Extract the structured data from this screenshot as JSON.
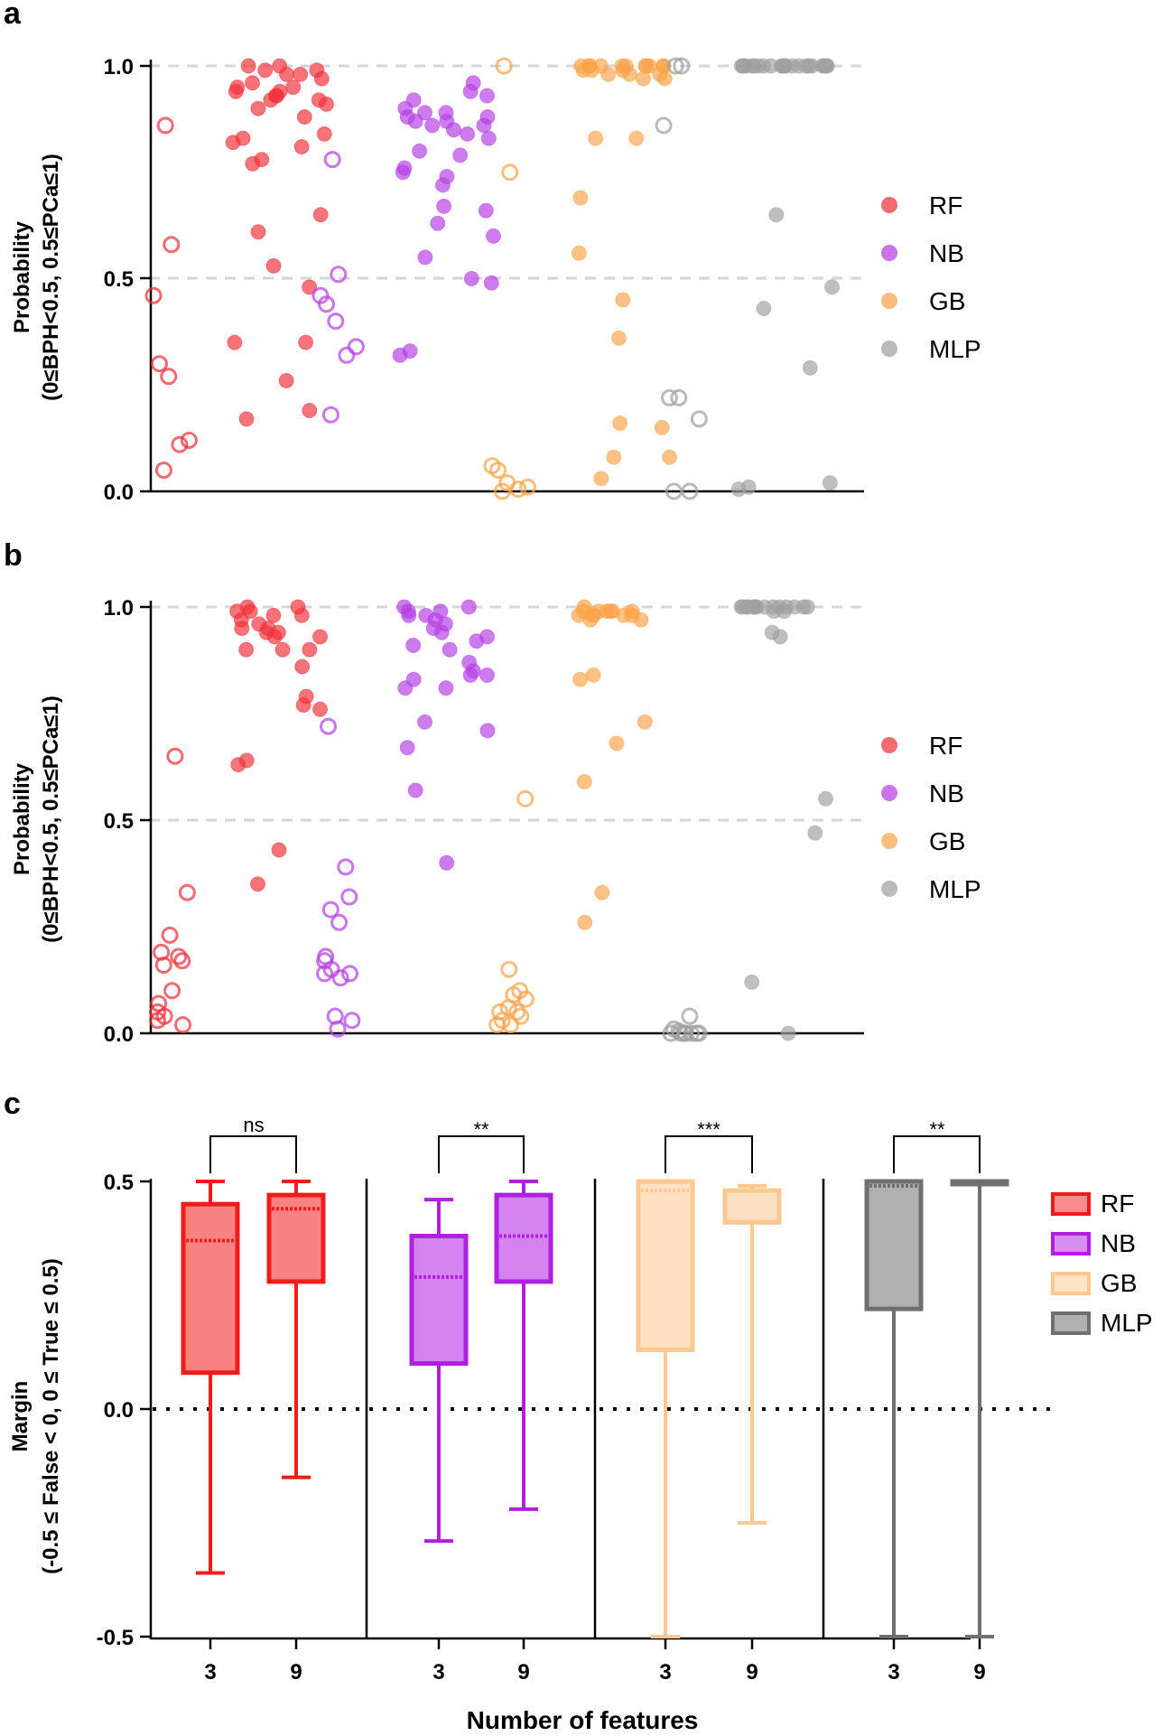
{
  "colors": {
    "RF": "#f0313a",
    "NB": "#b53ee6",
    "GB": "#fba44a",
    "MLP": "#a0a0a0",
    "RF_box": "#f21b1b",
    "NB_box": "#b01fe0",
    "GB_box": "#fbc98f",
    "MLP_box": "#6f6f6f"
  },
  "panels": {
    "a": {
      "letter": "a",
      "ylabel_line1": "Probability",
      "ylabel_line2": "(0≤BPH<0.5, 0.5≤PCa≤1)",
      "yticks": [
        "1.0",
        "0.5",
        "0.0"
      ],
      "legend": [
        "RF",
        "NB",
        "GB",
        "MLP"
      ]
    },
    "b": {
      "letter": "b",
      "ylabel_line1": "Probability",
      "ylabel_line2": "(0≤BPH<0.5, 0.5≤PCa≤1)",
      "yticks": [
        "1.0",
        "0.5",
        "0.0"
      ],
      "legend": [
        "RF",
        "NB",
        "GB",
        "MLP"
      ]
    },
    "c": {
      "letter": "c",
      "ylabel_line1": "Margin",
      "ylabel_line2": "(-0.5 ≤ False < 0, 0 ≤ True  ≤ 0.5)",
      "yticks": [
        "0.5",
        "0.0",
        "-0.5"
      ],
      "legend": [
        "RF",
        "NB",
        "GB",
        "MLP"
      ],
      "xlabel": "Number of features",
      "xticks": [
        "3",
        "9",
        "3",
        "9",
        "3",
        "9",
        "3",
        "9"
      ]
    }
  },
  "chart_data": [
    {
      "type": "scatter",
      "panel": "a",
      "ylabel": "Probability (0≤BPH<0.5, 0.5≤PCa≤1)",
      "ylim": [
        0,
        1
      ],
      "gridlines": [
        0.5,
        1.0
      ],
      "groups": [
        {
          "model": "RF",
          "style": "open",
          "values": [
            0.86,
            0.58,
            0.46,
            0.3,
            0.27,
            0.12,
            0.11,
            0.05
          ]
        },
        {
          "model": "RF",
          "style": "filled",
          "values": [
            1.0,
            1.0,
            0.99,
            0.99,
            0.98,
            0.98,
            0.97,
            0.96,
            0.95,
            0.95,
            0.94,
            0.94,
            0.93,
            0.93,
            0.92,
            0.92,
            0.91,
            0.9,
            0.88,
            0.84,
            0.83,
            0.82,
            0.81,
            0.78,
            0.77,
            0.65,
            0.61,
            0.53,
            0.48,
            0.35,
            0.35,
            0.26,
            0.19,
            0.17
          ]
        },
        {
          "model": "NB",
          "style": "open",
          "values": [
            0.78,
            0.51,
            0.46,
            0.44,
            0.4,
            0.34,
            0.32,
            0.18
          ]
        },
        {
          "model": "NB",
          "style": "filled",
          "values": [
            0.96,
            0.94,
            0.93,
            0.92,
            0.9,
            0.89,
            0.89,
            0.88,
            0.88,
            0.87,
            0.87,
            0.86,
            0.86,
            0.85,
            0.84,
            0.83,
            0.8,
            0.79,
            0.76,
            0.75,
            0.74,
            0.72,
            0.67,
            0.66,
            0.63,
            0.6,
            0.55,
            0.5,
            0.49,
            0.33,
            0.32
          ]
        },
        {
          "model": "GB",
          "style": "open",
          "values": [
            1.0,
            0.75,
            0.06,
            0.05,
            0.02,
            0.01,
            0.005,
            0.0
          ]
        },
        {
          "model": "GB",
          "style": "filled",
          "values": [
            1.0,
            1.0,
            1.0,
            1.0,
            1.0,
            1.0,
            1.0,
            1.0,
            1.0,
            1.0,
            1.0,
            0.99,
            0.99,
            0.99,
            0.98,
            0.98,
            0.98,
            0.97,
            0.97,
            0.83,
            0.83,
            0.69,
            0.56,
            0.45,
            0.36,
            0.16,
            0.15,
            0.08,
            0.08,
            0.03
          ]
        },
        {
          "model": "MLP",
          "style": "open",
          "values": [
            1.0,
            1.0,
            0.86,
            0.22,
            0.22,
            0.17,
            0.0,
            0.0
          ]
        },
        {
          "model": "MLP",
          "style": "filled",
          "values": [
            1.0,
            1.0,
            1.0,
            1.0,
            1.0,
            1.0,
            1.0,
            1.0,
            1.0,
            1.0,
            1.0,
            1.0,
            1.0,
            1.0,
            1.0,
            1.0,
            1.0,
            1.0,
            1.0,
            1.0,
            1.0,
            1.0,
            1.0,
            1.0,
            0.65,
            0.48,
            0.43,
            0.29,
            0.02,
            0.01,
            0.005
          ]
        }
      ]
    },
    {
      "type": "scatter",
      "panel": "b",
      "ylabel": "Probability (0≤BPH<0.5, 0.5≤PCa≤1)",
      "ylim": [
        0,
        1
      ],
      "gridlines": [
        0.5,
        1.0
      ],
      "groups": [
        {
          "model": "RF",
          "style": "open",
          "values": [
            0.65,
            0.33,
            0.23,
            0.19,
            0.18,
            0.17,
            0.16,
            0.1,
            0.07,
            0.05,
            0.04,
            0.03,
            0.02
          ]
        },
        {
          "model": "RF",
          "style": "filled",
          "values": [
            1.0,
            1.0,
            0.99,
            0.99,
            0.98,
            0.98,
            0.97,
            0.96,
            0.95,
            0.95,
            0.94,
            0.94,
            0.93,
            0.93,
            0.9,
            0.9,
            0.9,
            0.86,
            0.79,
            0.77,
            0.76,
            0.64,
            0.63,
            0.43,
            0.35
          ]
        },
        {
          "model": "NB",
          "style": "open",
          "values": [
            0.72,
            0.39,
            0.32,
            0.29,
            0.26,
            0.18,
            0.17,
            0.15,
            0.14,
            0.14,
            0.13,
            0.04,
            0.03,
            0.01
          ]
        },
        {
          "model": "NB",
          "style": "filled",
          "values": [
            1.0,
            1.0,
            0.99,
            0.99,
            0.98,
            0.98,
            0.97,
            0.96,
            0.95,
            0.94,
            0.93,
            0.92,
            0.91,
            0.9,
            0.87,
            0.85,
            0.84,
            0.84,
            0.83,
            0.81,
            0.81,
            0.73,
            0.71,
            0.67,
            0.57,
            0.4
          ]
        },
        {
          "model": "GB",
          "style": "open",
          "values": [
            0.55,
            0.15,
            0.1,
            0.09,
            0.08,
            0.06,
            0.05,
            0.05,
            0.04,
            0.03,
            0.02,
            0.02
          ]
        },
        {
          "model": "GB",
          "style": "filled",
          "values": [
            1.0,
            0.99,
            0.99,
            0.99,
            0.99,
            0.99,
            0.99,
            0.98,
            0.98,
            0.98,
            0.98,
            0.98,
            0.97,
            0.97,
            0.84,
            0.83,
            0.73,
            0.68,
            0.59,
            0.33,
            0.26
          ]
        },
        {
          "model": "MLP",
          "style": "open",
          "values": [
            0.04,
            0.01,
            0.005,
            0.0,
            0.0,
            0.0,
            0.0,
            0.0,
            0.0,
            0.0
          ]
        },
        {
          "model": "MLP",
          "style": "filled",
          "values": [
            1.0,
            1.0,
            1.0,
            1.0,
            1.0,
            1.0,
            1.0,
            1.0,
            1.0,
            1.0,
            1.0,
            1.0,
            1.0,
            1.0,
            1.0,
            0.99,
            0.99,
            0.94,
            0.93,
            0.55,
            0.47,
            0.12,
            0.0
          ]
        }
      ]
    },
    {
      "type": "box",
      "panel": "c",
      "xlabel": "Number of features",
      "ylabel": "Margin (-0.5 ≤ False < 0, 0 ≤ True  ≤ 0.5)",
      "ylim": [
        -0.5,
        0.5
      ],
      "reference_line": 0.0,
      "boxes": [
        {
          "model": "RF",
          "features": "3",
          "min": -0.36,
          "q1": 0.08,
          "mean": 0.37,
          "q3": 0.45,
          "max": 0.5
        },
        {
          "model": "RF",
          "features": "9",
          "min": -0.15,
          "q1": 0.28,
          "mean": 0.44,
          "q3": 0.47,
          "max": 0.5
        },
        {
          "model": "NB",
          "features": "3",
          "min": -0.29,
          "q1": 0.1,
          "mean": 0.29,
          "q3": 0.38,
          "max": 0.46
        },
        {
          "model": "NB",
          "features": "9",
          "min": -0.22,
          "q1": 0.28,
          "mean": 0.38,
          "q3": 0.47,
          "max": 0.5
        },
        {
          "model": "GB",
          "features": "3",
          "min": -0.5,
          "q1": 0.13,
          "mean": 0.48,
          "q3": 0.5,
          "max": 0.5
        },
        {
          "model": "GB",
          "features": "9",
          "min": -0.25,
          "q1": 0.41,
          "mean": 0.48,
          "q3": 0.48,
          "max": 0.49
        },
        {
          "model": "MLP",
          "features": "3",
          "min": -0.5,
          "q1": 0.22,
          "mean": 0.49,
          "q3": 0.5,
          "max": 0.5
        },
        {
          "model": "MLP",
          "features": "9",
          "min": -0.5,
          "q1": 0.5,
          "mean": 0.5,
          "q3": 0.5,
          "max": 0.5
        }
      ],
      "significance": [
        {
          "model": "RF",
          "label": "ns"
        },
        {
          "model": "NB",
          "label": "**"
        },
        {
          "model": "GB",
          "label": "***"
        },
        {
          "model": "MLP",
          "label": "**"
        }
      ]
    }
  ]
}
